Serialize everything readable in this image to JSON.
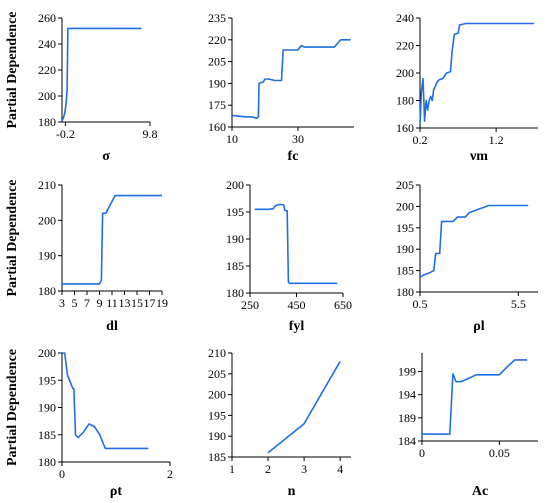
{
  "colors": {
    "line": "#1f6fe0",
    "axis": "#000000"
  },
  "chart_data": [
    {
      "type": "line",
      "xlabel": "σ",
      "ylabel": "Partial Dependence",
      "xlim": [
        -0.6,
        9.8
      ],
      "ylim": [
        180,
        260
      ],
      "xticks": [
        -0.2,
        9.8
      ],
      "xtick_labels": [
        "-0.2",
        "9.8"
      ],
      "yticks": [
        180,
        200,
        220,
        240,
        260
      ],
      "ytick_labels": [
        "180",
        "200",
        "220",
        "240",
        "260"
      ],
      "x": [
        -0.6,
        -0.45,
        -0.3,
        -0.22,
        -0.1,
        0.0,
        0.1,
        0.3,
        1,
        3,
        5,
        7,
        8.8
      ],
      "y": [
        181,
        183,
        186,
        189,
        195,
        205,
        252,
        252,
        252,
        252,
        252,
        252,
        252
      ]
    },
    {
      "type": "line",
      "xlabel": "fc",
      "ylabel": "",
      "xlim": [
        10,
        47
      ],
      "ylim": [
        160,
        235
      ],
      "xticks": [
        10,
        30
      ],
      "xtick_labels": [
        "10",
        "30"
      ],
      "yticks": [
        160,
        175,
        190,
        205,
        220,
        235
      ],
      "ytick_labels": [
        "160",
        "175",
        "190",
        "205",
        "220",
        "235"
      ],
      "x": [
        10,
        14,
        16,
        17.5,
        18,
        18.2,
        19.5,
        20,
        21,
        23,
        25,
        25.5,
        27,
        29,
        30,
        31,
        32,
        35,
        38,
        41,
        43,
        46
      ],
      "y": [
        168,
        167,
        167,
        166,
        167,
        190,
        191,
        193,
        193,
        192,
        192,
        213,
        213,
        213,
        213,
        216,
        215,
        215,
        215,
        215,
        220,
        220
      ]
    },
    {
      "type": "line",
      "xlabel": "νm",
      "ylabel": "",
      "xlim": [
        0.2,
        1.75
      ],
      "ylim": [
        160,
        240
      ],
      "xticks": [
        0.2,
        1.2
      ],
      "xtick_labels": [
        "0.2",
        "1.2"
      ],
      "yticks": [
        160,
        180,
        200,
        220,
        240
      ],
      "ytick_labels": [
        "160",
        "180",
        "200",
        "220",
        "240"
      ],
      "x": [
        0.2,
        0.22,
        0.24,
        0.26,
        0.28,
        0.3,
        0.32,
        0.34,
        0.36,
        0.38,
        0.4,
        0.42,
        0.45,
        0.5,
        0.55,
        0.6,
        0.62,
        0.65,
        0.7,
        0.72,
        0.8,
        1.0,
        1.3,
        1.7
      ],
      "y": [
        163,
        187,
        196,
        165,
        180,
        173,
        180,
        183,
        180,
        188,
        190,
        193,
        195,
        196,
        200,
        201,
        215,
        228,
        229,
        235,
        236,
        236,
        236,
        236
      ]
    },
    {
      "type": "line",
      "xlabel": "dl",
      "ylabel": "Partial Dependence",
      "xlim": [
        3,
        19
      ],
      "ylim": [
        180,
        210
      ],
      "xticks": [
        3,
        5,
        7,
        9,
        11,
        13,
        15,
        17,
        19
      ],
      "xtick_labels": [
        "3",
        "5",
        "7",
        "9",
        "11",
        "13",
        "15",
        "17",
        "19"
      ],
      "yticks": [
        180,
        190,
        200,
        210
      ],
      "ytick_labels": [
        "180",
        "190",
        "200",
        "210"
      ],
      "x": [
        3,
        5,
        7,
        9,
        9.3,
        9.5,
        10,
        11.5,
        15,
        19
      ],
      "y": [
        182,
        182,
        182,
        182,
        183,
        202,
        202,
        207,
        207,
        207
      ]
    },
    {
      "type": "line",
      "xlabel": "fyl",
      "ylabel": "",
      "xlim": [
        250,
        650
      ],
      "ylim": [
        180,
        200
      ],
      "xticks": [
        250,
        450,
        650
      ],
      "xtick_labels": [
        "250",
        "450",
        "650"
      ],
      "yticks": [
        180,
        185,
        190,
        195,
        200
      ],
      "ytick_labels": [
        "180",
        "185",
        "190",
        "195",
        "200"
      ],
      "x": [
        270,
        300,
        330,
        350,
        360,
        380,
        395,
        400,
        410,
        415,
        420,
        430,
        500,
        600,
        625
      ],
      "y": [
        195.5,
        195.5,
        195.5,
        195.6,
        196.2,
        196.4,
        196.3,
        195.3,
        195.2,
        182,
        181.8,
        181.8,
        181.8,
        181.8,
        181.8
      ]
    },
    {
      "type": "line",
      "xlabel": "ρl",
      "ylabel": "",
      "xlim": [
        0.5,
        6.5
      ],
      "ylim": [
        180,
        205
      ],
      "xticks": [
        0.5,
        5.5
      ],
      "xtick_labels": [
        "0.5",
        "5.5"
      ],
      "yticks": [
        180,
        185,
        190,
        195,
        200,
        205
      ],
      "ytick_labels": [
        "180",
        "185",
        "190",
        "195",
        "200",
        "205"
      ],
      "x": [
        0.5,
        0.7,
        1.0,
        1.2,
        1.3,
        1.5,
        1.6,
        2.0,
        2.2,
        2.4,
        2.8,
        3.0,
        3.4,
        4.0,
        5.0,
        6.0
      ],
      "y": [
        183.5,
        184,
        184.5,
        185,
        189,
        189,
        196.5,
        196.5,
        196.5,
        197.5,
        197.5,
        198.5,
        199.2,
        200.2,
        200.2,
        200.2
      ]
    },
    {
      "type": "line",
      "xlabel": "ρt",
      "ylabel": "Partial Dependence",
      "xlim": [
        0,
        2
      ],
      "ylim": [
        180,
        200
      ],
      "xticks": [
        0,
        2
      ],
      "xtick_labels": [
        "0",
        "2"
      ],
      "yticks": [
        180,
        185,
        190,
        195,
        200
      ],
      "ytick_labels": [
        "180",
        "185",
        "190",
        "195",
        "200"
      ],
      "x": [
        0,
        0.05,
        0.1,
        0.2,
        0.22,
        0.25,
        0.3,
        0.35,
        0.4,
        0.5,
        0.6,
        0.7,
        0.8,
        1.0,
        1.2,
        1.4,
        1.6
      ],
      "y": [
        200,
        200,
        196,
        193.5,
        193.4,
        185,
        184.5,
        185,
        185.5,
        187,
        186.5,
        185,
        182.5,
        182.5,
        182.5,
        182.5,
        182.5
      ]
    },
    {
      "type": "line",
      "xlabel": "n",
      "ylabel": "",
      "xlim": [
        1,
        4.3
      ],
      "ylim": [
        185,
        210
      ],
      "xticks": [
        1,
        2,
        3,
        4
      ],
      "xtick_labels": [
        "1",
        "2",
        "3",
        "4"
      ],
      "yticks": [
        185,
        190,
        195,
        200,
        205,
        210
      ],
      "ytick_labels": [
        "185",
        "190",
        "195",
        "200",
        "205",
        "210"
      ],
      "x": [
        2,
        3,
        4
      ],
      "y": [
        186,
        193,
        208
      ]
    },
    {
      "type": "line",
      "xlabel": "Ac",
      "ylabel": "",
      "xlim": [
        0,
        0.075
      ],
      "ylim": [
        184,
        203
      ],
      "xticks": [
        0,
        0.05
      ],
      "xtick_labels": [
        "0",
        "0.05"
      ],
      "yticks": [
        184,
        189,
        194,
        199
      ],
      "ytick_labels": [
        "184",
        "189",
        "194",
        "199"
      ],
      "x": [
        0,
        0.005,
        0.01,
        0.015,
        0.018,
        0.02,
        0.022,
        0.025,
        0.03,
        0.035,
        0.04,
        0.045,
        0.05,
        0.055,
        0.06,
        0.062,
        0.068
      ],
      "y": [
        185.5,
        185.5,
        185.5,
        185.5,
        185.5,
        198.5,
        196.8,
        196.8,
        197.5,
        198.3,
        198.3,
        198.3,
        198.3,
        200,
        201.5,
        201.5,
        201.5
      ]
    }
  ]
}
